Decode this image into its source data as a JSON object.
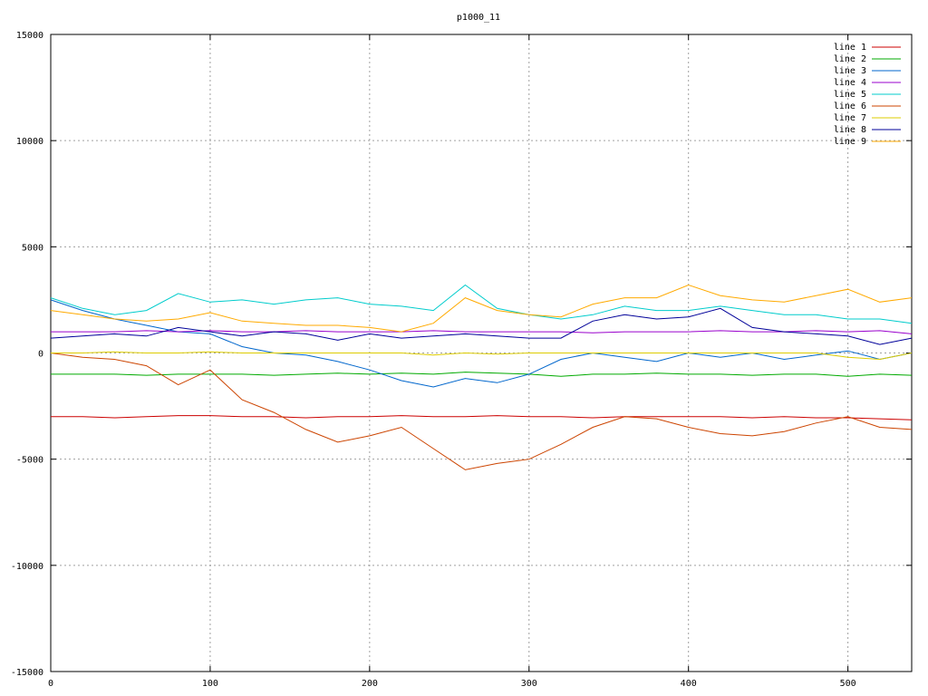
{
  "chart_data": {
    "type": "line",
    "title": "p1000_11",
    "xlabel": "",
    "ylabel": "",
    "xlim": [
      0,
      540
    ],
    "ylim": [
      -15000,
      15000
    ],
    "x_ticks": [
      0,
      100,
      200,
      300,
      400,
      500
    ],
    "y_ticks": [
      -15000,
      -10000,
      -5000,
      0,
      5000,
      10000,
      15000
    ],
    "grid": true,
    "legend_position": "top-right",
    "x": [
      0,
      20,
      40,
      60,
      80,
      100,
      120,
      140,
      160,
      180,
      200,
      220,
      240,
      260,
      280,
      300,
      320,
      340,
      360,
      380,
      400,
      420,
      440,
      460,
      480,
      500,
      520,
      540
    ],
    "series": [
      {
        "name": "line 1",
        "color": "#cc0000",
        "values": [
          -3000,
          -3000,
          -3050,
          -3000,
          -2950,
          -2950,
          -3000,
          -3000,
          -3050,
          -3000,
          -3000,
          -2950,
          -3000,
          -3000,
          -2950,
          -3000,
          -3000,
          -3050,
          -3000,
          -3000,
          -3000,
          -3000,
          -3050,
          -3000,
          -3050,
          -3050,
          -3100,
          -3150
        ]
      },
      {
        "name": "line 2",
        "color": "#00aa00",
        "values": [
          -1000,
          -1000,
          -1000,
          -1050,
          -1000,
          -1000,
          -1000,
          -1050,
          -1000,
          -950,
          -1000,
          -950,
          -1000,
          -900,
          -950,
          -1000,
          -1100,
          -1000,
          -1000,
          -950,
          -1000,
          -1000,
          -1050,
          -1000,
          -1000,
          -1100,
          -1000,
          -1050
        ]
      },
      {
        "name": "line 3",
        "color": "#0066cc",
        "values": [
          2500,
          2000,
          1600,
          1300,
          1000,
          900,
          300,
          0,
          -100,
          -400,
          -800,
          -1300,
          -1600,
          -1200,
          -1400,
          -1000,
          -300,
          0,
          -200,
          -400,
          0,
          -200,
          0,
          -300,
          -100,
          100,
          -300,
          0
        ]
      },
      {
        "name": "line 4",
        "color": "#9900cc",
        "values": [
          1000,
          1000,
          1000,
          1050,
          1000,
          1050,
          1000,
          1000,
          1050,
          1000,
          1000,
          1000,
          1050,
          1000,
          1000,
          1000,
          1000,
          950,
          1000,
          1000,
          1000,
          1050,
          1000,
          1000,
          1050,
          1000,
          1050,
          900
        ]
      },
      {
        "name": "line 5",
        "color": "#00cccc",
        "values": [
          2600,
          2100,
          1800,
          2000,
          2800,
          2400,
          2500,
          2300,
          2500,
          2600,
          2300,
          2200,
          2000,
          3200,
          2100,
          1800,
          1600,
          1800,
          2200,
          2000,
          2000,
          2200,
          2000,
          1800,
          1800,
          1600,
          1600,
          1400
        ]
      },
      {
        "name": "line 6",
        "color": "#cc4400",
        "values": [
          0,
          -200,
          -300,
          -600,
          -1500,
          -800,
          -2200,
          -2800,
          -3600,
          -4200,
          -3900,
          -3500,
          -4500,
          -5500,
          -5200,
          -5000,
          -4300,
          -3500,
          -3000,
          -3100,
          -3500,
          -3800,
          -3900,
          -3700,
          -3300,
          -3000,
          -3500,
          -3600
        ]
      },
      {
        "name": "line 7",
        "color": "#ddcc00",
        "values": [
          0,
          0,
          50,
          0,
          0,
          50,
          0,
          0,
          0,
          0,
          0,
          0,
          -100,
          0,
          -50,
          0,
          0,
          0,
          0,
          0,
          0,
          0,
          0,
          0,
          0,
          -200,
          -300,
          0
        ]
      },
      {
        "name": "line 8",
        "color": "#000099",
        "values": [
          700,
          800,
          900,
          800,
          1200,
          1000,
          800,
          1000,
          900,
          600,
          900,
          700,
          800,
          900,
          800,
          700,
          700,
          1500,
          1800,
          1600,
          1700,
          2100,
          1200,
          1000,
          900,
          800,
          400,
          700
        ]
      },
      {
        "name": "line 9",
        "color": "#ffaa00",
        "values": [
          2000,
          1800,
          1600,
          1500,
          1600,
          1900,
          1500,
          1400,
          1300,
          1300,
          1200,
          1000,
          1400,
          2600,
          2000,
          1800,
          1700,
          2300,
          2600,
          2600,
          3200,
          2700,
          2500,
          2400,
          2700,
          3000,
          2400,
          2600
        ]
      }
    ]
  }
}
